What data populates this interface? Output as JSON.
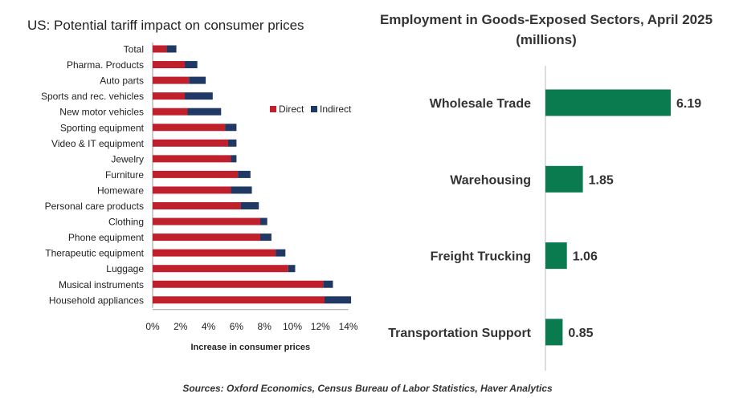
{
  "chart_data": [
    {
      "type": "bar",
      "orientation": "horizontal",
      "stacked": true,
      "title": "US: Potential tariff impact on consumer prices",
      "xlabel": "Increase in consumer prices",
      "ylabel": "",
      "xlim": [
        0,
        14
      ],
      "x_ticks": [
        "0%",
        "2%",
        "4%",
        "6%",
        "8%",
        "10%",
        "12%",
        "14%"
      ],
      "legend_position": "right",
      "categories": [
        "Total",
        "Pharma. Products",
        "Auto parts",
        "Sports and rec. vehicles",
        "New motor vehicles",
        "Sporting equipment",
        "Video & IT equipment",
        "Jewelry",
        "Furniture",
        "Homeware",
        "Personal care products",
        "Clothing",
        "Phone equipment",
        "Therapeutic  equipment",
        "Luggage",
        "Musical instruments",
        "Household appliances"
      ],
      "series": [
        {
          "name": "Direct",
          "color": "#c0202b",
          "values": [
            1.0,
            2.3,
            2.6,
            2.3,
            2.5,
            5.2,
            5.4,
            5.6,
            6.1,
            5.6,
            6.3,
            7.7,
            7.7,
            8.8,
            9.7,
            12.2,
            12.3
          ]
        },
        {
          "name": "Indirect",
          "color": "#1f3864",
          "values": [
            0.7,
            0.9,
            1.2,
            2.0,
            2.4,
            0.8,
            0.6,
            0.4,
            0.9,
            1.5,
            1.3,
            0.5,
            0.8,
            0.7,
            0.5,
            0.7,
            1.9
          ]
        }
      ]
    },
    {
      "type": "bar",
      "orientation": "horizontal",
      "title": "Employment in Goods-Exposed Sectors, April 2025 (millions)",
      "xlabel": "",
      "ylabel": "",
      "xlim": [
        0,
        6.5
      ],
      "grid": false,
      "categories": [
        "Wholesale Trade",
        "Warehousing",
        "Freight Trucking",
        "Transportation Support"
      ],
      "values": [
        6.19,
        1.85,
        1.06,
        0.85
      ],
      "value_labels": [
        "6.19",
        "1.85",
        "1.06",
        "0.85"
      ],
      "color": "#0a7a4f"
    }
  ],
  "sources": "Sources: Oxford Economics, Census Bureau of Labor Statistics, Haver Analytics"
}
